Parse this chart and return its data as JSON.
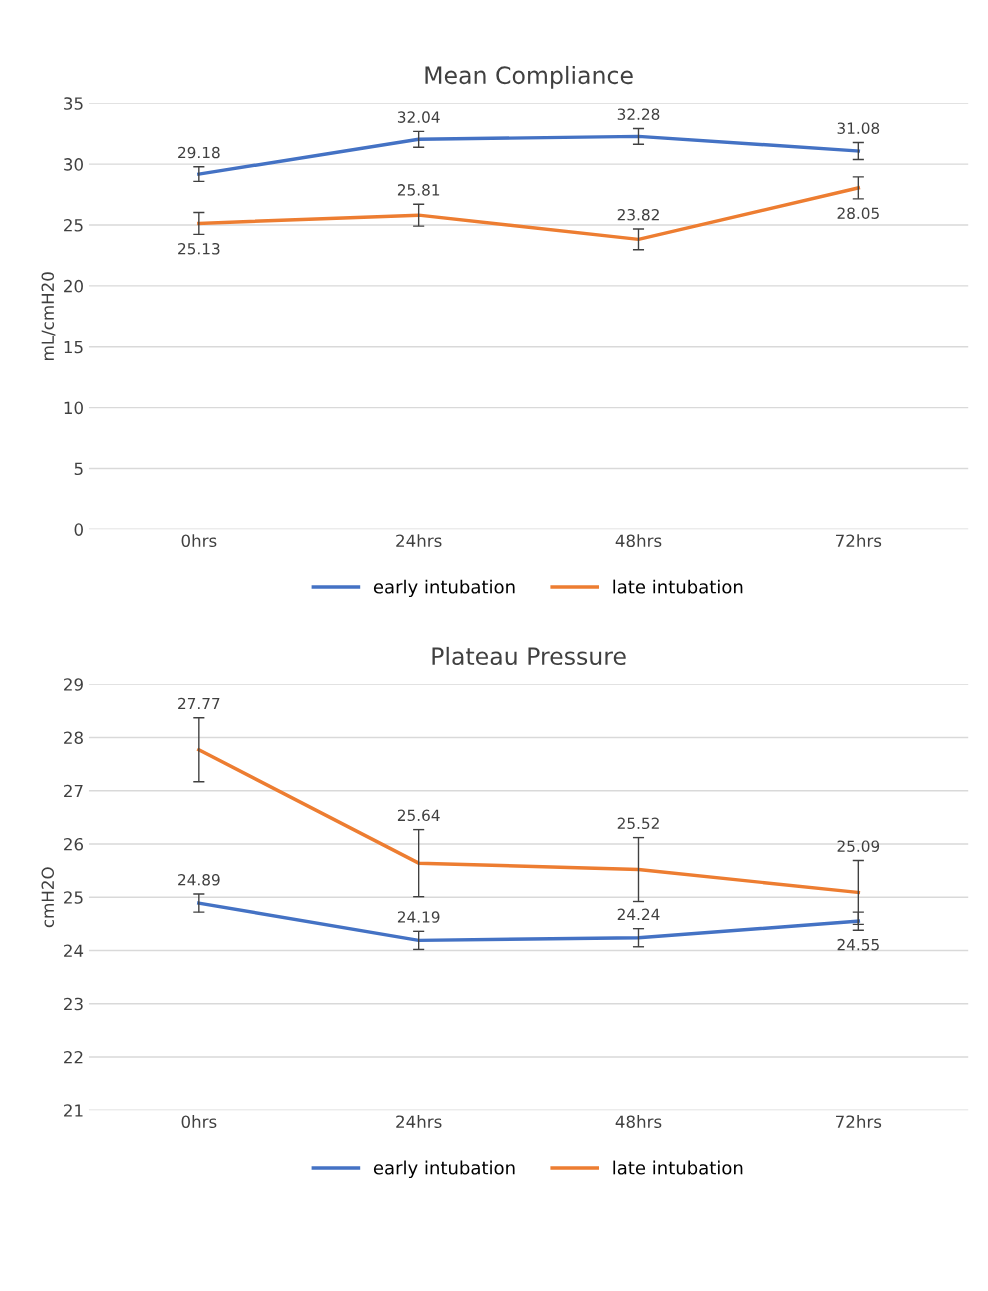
{
  "chart_data": [
    {
      "type": "line",
      "title": "Mean Compliance",
      "ylabel": "mL/cmH20",
      "categories": [
        "0hrs",
        "24hrs",
        "48hrs",
        "72hrs"
      ],
      "series": [
        {
          "name": "early intubation",
          "color": "#4472c4",
          "values": [
            29.18,
            32.04,
            32.28,
            31.08
          ],
          "errors": [
            0.6,
            0.65,
            0.65,
            0.7
          ]
        },
        {
          "name": "late intubation",
          "color": "#ed7d31",
          "values": [
            25.13,
            25.81,
            23.82,
            28.05
          ],
          "errors": [
            0.9,
            0.9,
            0.85,
            0.9
          ]
        }
      ],
      "ylim": [
        0,
        35
      ],
      "yticks": [
        0,
        5,
        10,
        15,
        20,
        25,
        30,
        35
      ],
      "grid": "y",
      "legend": "bottom",
      "data_labels": true,
      "marker": "none",
      "line_style": "solid"
    },
    {
      "type": "line",
      "title": "Plateau Pressure",
      "ylabel": "cmH2O",
      "categories": [
        "0hrs",
        "24hrs",
        "48hrs",
        "72hrs"
      ],
      "series": [
        {
          "name": "early intubation",
          "color": "#4472c4",
          "values": [
            24.89,
            24.19,
            24.24,
            24.55
          ],
          "errors": [
            0.17,
            0.17,
            0.17,
            0.17
          ]
        },
        {
          "name": "late intubation",
          "color": "#ed7d31",
          "values": [
            27.77,
            25.64,
            25.52,
            25.09
          ],
          "errors": [
            0.6,
            0.63,
            0.6,
            0.6
          ]
        }
      ],
      "ylim": [
        21,
        29
      ],
      "yticks": [
        21,
        22,
        23,
        24,
        25,
        26,
        27,
        28,
        29
      ],
      "grid": "y",
      "legend": "bottom",
      "data_labels": true,
      "marker": "none",
      "line_style": "solid"
    }
  ]
}
